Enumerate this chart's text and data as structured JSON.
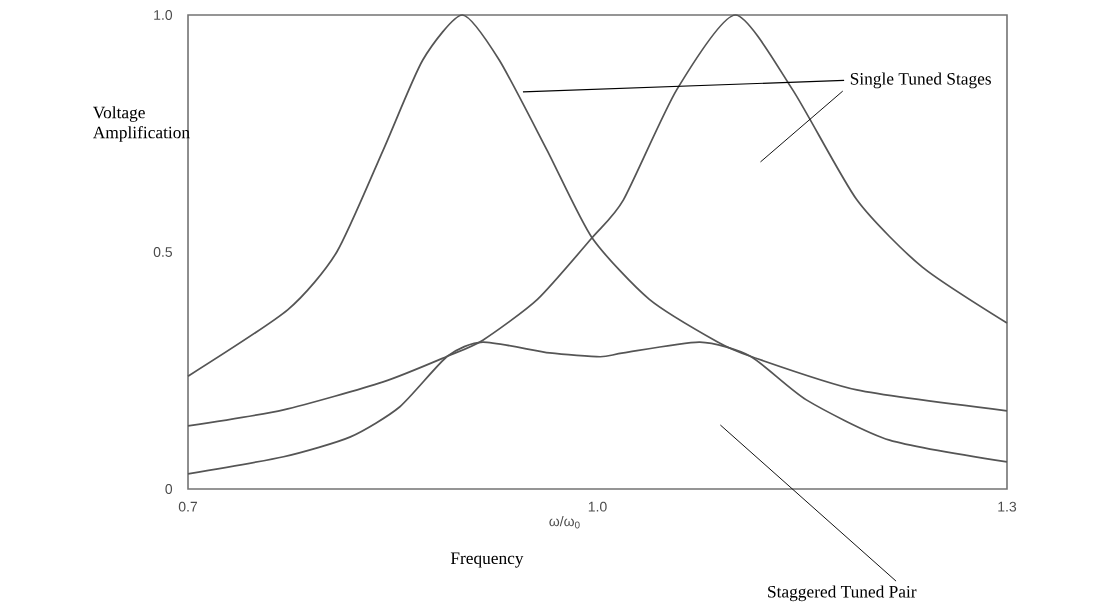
{
  "chart_data": {
    "type": "line",
    "xlabel": "Frequency",
    "ylabel": "Voltage Amplification",
    "xlim": [
      0.7,
      1.3
    ],
    "ylim": [
      0,
      1
    ],
    "xticks": [
      0.7,
      {
        "value": 1,
        "label": "1.0"
      },
      1.3
    ],
    "yticks": [
      0,
      0.5,
      {
        "value": 1,
        "label": "1.0"
      }
    ],
    "grid": false,
    "marker": "none",
    "line_style": "solid",
    "annotations": [
      "Single Tuned Stages",
      "Staggered Tuned Pair",
      "ω/ω$_{0}$"
    ],
    "series": [
      {
        "color": "#555555",
        "x": [
          0.7,
          0.773,
          0.809,
          0.843,
          0.872,
          0.901,
          0.928,
          0.963,
          0.996,
          1.038,
          1.088,
          1.112,
          1.19,
          1.3
        ],
        "values": [
          0.238,
          0.378,
          0.5,
          0.715,
          0.905,
          1.0,
          0.905,
          0.715,
          0.53,
          0.4,
          0.31,
          0.28,
          0.209,
          0.165
        ]
      },
      {
        "color": "#555555",
        "x": [
          0.7,
          0.77,
          0.843,
          0.89,
          0.916,
          0.956,
          0.996,
          1.019,
          1.058,
          1.101,
          1.143,
          1.19,
          1.238,
          1.3
        ],
        "values": [
          0.133,
          0.167,
          0.226,
          0.28,
          0.314,
          0.4,
          0.53,
          0.61,
          0.842,
          1.0,
          0.842,
          0.61,
          0.468,
          0.35
        ]
      },
      {
        "color": "#555555",
        "x": [
          0.7,
          0.77,
          0.819,
          0.855,
          0.89,
          0.916,
          0.965,
          1.002,
          1.019,
          1.075,
          1.112,
          1.153,
          1.214,
          1.3
        ],
        "values": [
          0.032,
          0.068,
          0.11,
          0.173,
          0.28,
          0.31,
          0.287,
          0.279,
          0.287,
          0.31,
          0.28,
          0.188,
          0.103,
          0.057
        ]
      }
    ]
  }
}
